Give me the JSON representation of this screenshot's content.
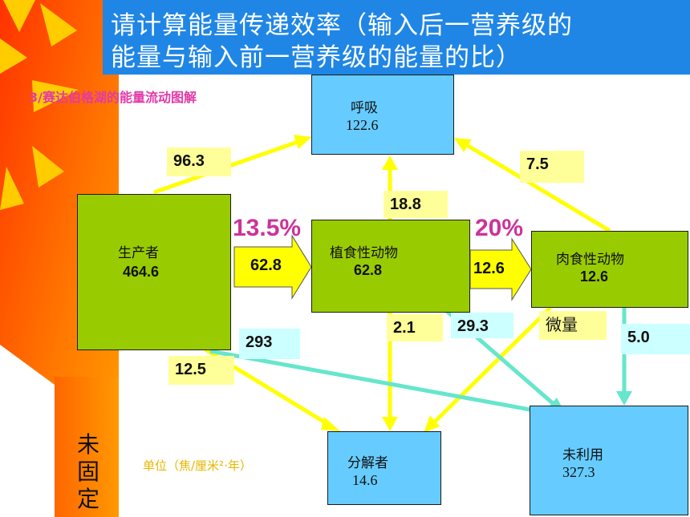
{
  "title": {
    "line1": "请计算能量传递效率（输入后一营养级的",
    "line2": "能量与输入前一营养级的能量的比）"
  },
  "subtitle": "3/赛达伯格湖的能量流动图解",
  "boxes": {
    "respiration": {
      "name": "呼吸",
      "value": "122.6"
    },
    "producer": {
      "name": "生产者",
      "value": "464.6"
    },
    "herbivore": {
      "name": "植食性动物",
      "value": "62.8"
    },
    "carnivore": {
      "name": "肉食性动物",
      "value": "12.6"
    },
    "decomposer": {
      "name": "分解者",
      "value": "14.6"
    },
    "unused": {
      "name": "未利用",
      "value": "327.3"
    }
  },
  "labels": {
    "producer_respiration": "96.3",
    "carnivore_respiration": "7.5",
    "herbivore_respiration": "18.8",
    "producer_to_herbivore": "62.8",
    "herbivore_to_carnivore": "12.6",
    "herbivore_to_decomposer": "2.1",
    "herbivore_to_unused": "29.3",
    "carnivore_to_decomposer": "微量",
    "carnivore_to_unused": "5.0",
    "producer_to_unused": "293",
    "producer_to_decomposer": "12.5"
  },
  "efficiency": {
    "producer_to_herbivore": "13.5%",
    "herbivore_to_carnivore": "20%"
  },
  "unit": "单位（焦/厘米²·年）",
  "unfixed": [
    "未",
    "固",
    "定"
  ],
  "colors": {
    "title_band": "#1f86e6",
    "sun": "#ff9900",
    "sun_ray": "#ffcc00",
    "box_blue": "#66ccff",
    "box_green": "#99cc00",
    "arrow_yellow": "#ffff00",
    "arrow_teal": "#66e6cc",
    "label_yellow": "#ffff99",
    "label_cyan": "#ccffff",
    "percent_magenta": "#cc3399"
  }
}
